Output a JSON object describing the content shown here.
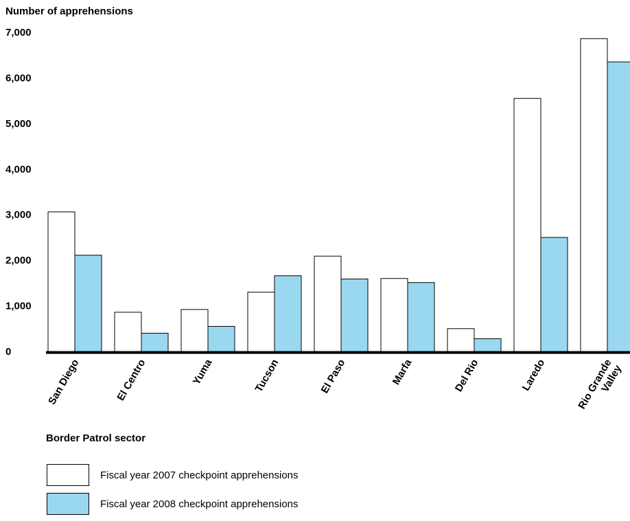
{
  "chart_data": {
    "type": "bar",
    "ylabel": "Number of apprehensions",
    "xlabel": "Border Patrol sector",
    "ylim": [
      0,
      7000
    ],
    "yticks": [
      "0",
      "1,000",
      "2,000",
      "3,000",
      "4,000",
      "5,000",
      "6,000",
      "7,000"
    ],
    "categories": [
      [
        "San Diego"
      ],
      [
        "El Centro"
      ],
      [
        "Yuma"
      ],
      [
        "Tucson"
      ],
      [
        "El Paso"
      ],
      [
        "Marfa"
      ],
      [
        "Del Rio"
      ],
      [
        "Laredo"
      ],
      [
        "Rio Grande",
        "Valley"
      ]
    ],
    "series": [
      {
        "name": "Fiscal year 2007 checkpoint apprehensions",
        "color": "#ffffff",
        "values": [
          3060,
          860,
          920,
          1300,
          2090,
          1600,
          500,
          5550,
          6860
        ]
      },
      {
        "name": "Fiscal year 2008 checkpoint apprehensions",
        "color": "#9ad8ef",
        "values": [
          2110,
          400,
          550,
          1660,
          1590,
          1510,
          280,
          2500,
          6350
        ]
      }
    ]
  }
}
